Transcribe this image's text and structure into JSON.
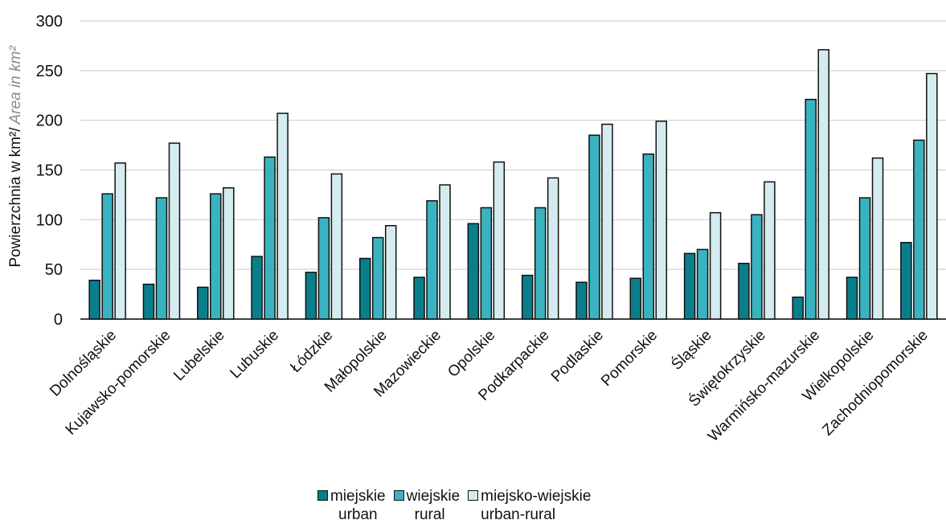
{
  "chart_data": {
    "type": "bar",
    "ylabel": "Powierzchnia w km²/",
    "ylabel_italic": "Area in km²",
    "ylim": [
      0,
      300
    ],
    "yticks": [
      "0",
      "50",
      "100",
      "150",
      "200",
      "250",
      "300"
    ],
    "grid": true,
    "legend_position": "bottom",
    "categories": [
      "Dolnośląskie",
      "Kujawsko-pomorskie",
      "Lubelskie",
      "Lubuskie",
      "Łódzkie",
      "Małopolskie",
      "Mazowieckie",
      "Opolskie",
      "Podkarpackie",
      "Podlaskie",
      "Pomorskie",
      "Śląskie",
      "Świętokrzyskie",
      "Warmińsko-mazurskie",
      "Wielkopolskie",
      "Zachodniopomorskie"
    ],
    "series": [
      {
        "name": "miejskie",
        "name_en": "urban",
        "color": "#0a7f8c",
        "values": [
          39,
          35,
          32,
          63,
          47,
          61,
          42,
          96,
          44,
          37,
          41,
          66,
          56,
          22,
          42,
          77
        ]
      },
      {
        "name": "wiejskie",
        "name_en": "rural",
        "color": "#3ab3c0",
        "values": [
          126,
          122,
          126,
          163,
          102,
          82,
          119,
          112,
          112,
          185,
          166,
          70,
          105,
          221,
          122,
          180
        ]
      },
      {
        "name": "miejsko-wiejskie",
        "name_en": "urban-rural",
        "color": "#d4ecef",
        "values": [
          157,
          177,
          132,
          207,
          146,
          94,
          135,
          158,
          142,
          196,
          199,
          107,
          138,
          271,
          162,
          247
        ]
      }
    ]
  }
}
